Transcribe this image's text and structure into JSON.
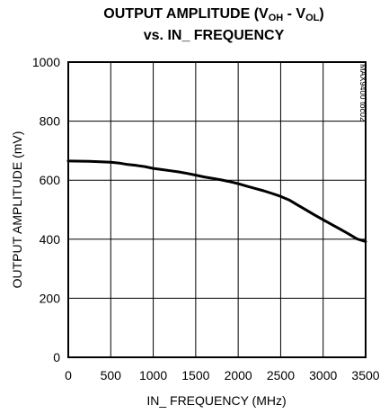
{
  "chart_data": {
    "type": "line",
    "title_line1": {
      "main": "OUTPUT AMPLITUDE (V",
      "sub1": "OH",
      "mid": " - V",
      "sub2": "OL",
      "end": ")"
    },
    "title_line2": "vs. IN_ FREQUENCY",
    "xlabel": "IN_ FREQUENCY (MHz)",
    "ylabel": "OUTPUT AMPLITUDE (mV)",
    "side_note": "MAX9400 toc02",
    "xlim": [
      0,
      3500
    ],
    "ylim": [
      0,
      1000
    ],
    "x_ticks": [
      "0",
      "500",
      "1000",
      "1500",
      "2000",
      "2500",
      "3000",
      "3500"
    ],
    "y_ticks": [
      "0",
      "200",
      "400",
      "600",
      "800",
      "1000"
    ],
    "grid": true,
    "series": [
      {
        "x": [
          0,
          250,
          500,
          600,
          700,
          800,
          900,
          1000,
          1100,
          1200,
          1300,
          1400,
          1500,
          1600,
          1700,
          1800,
          1900,
          2000,
          2100,
          2200,
          2300,
          2400,
          2500,
          2600,
          2700,
          2800,
          2900,
          3000,
          3100,
          3200,
          3300,
          3400,
          3500
        ],
        "y": [
          665,
          664,
          661,
          658,
          653,
          650,
          646,
          640,
          636,
          632,
          628,
          623,
          617,
          611,
          606,
          601,
          595,
          588,
          580,
          572,
          564,
          555,
          545,
          533,
          516,
          499,
          482,
          466,
          450,
          434,
          418,
          401,
          392
        ]
      }
    ]
  }
}
